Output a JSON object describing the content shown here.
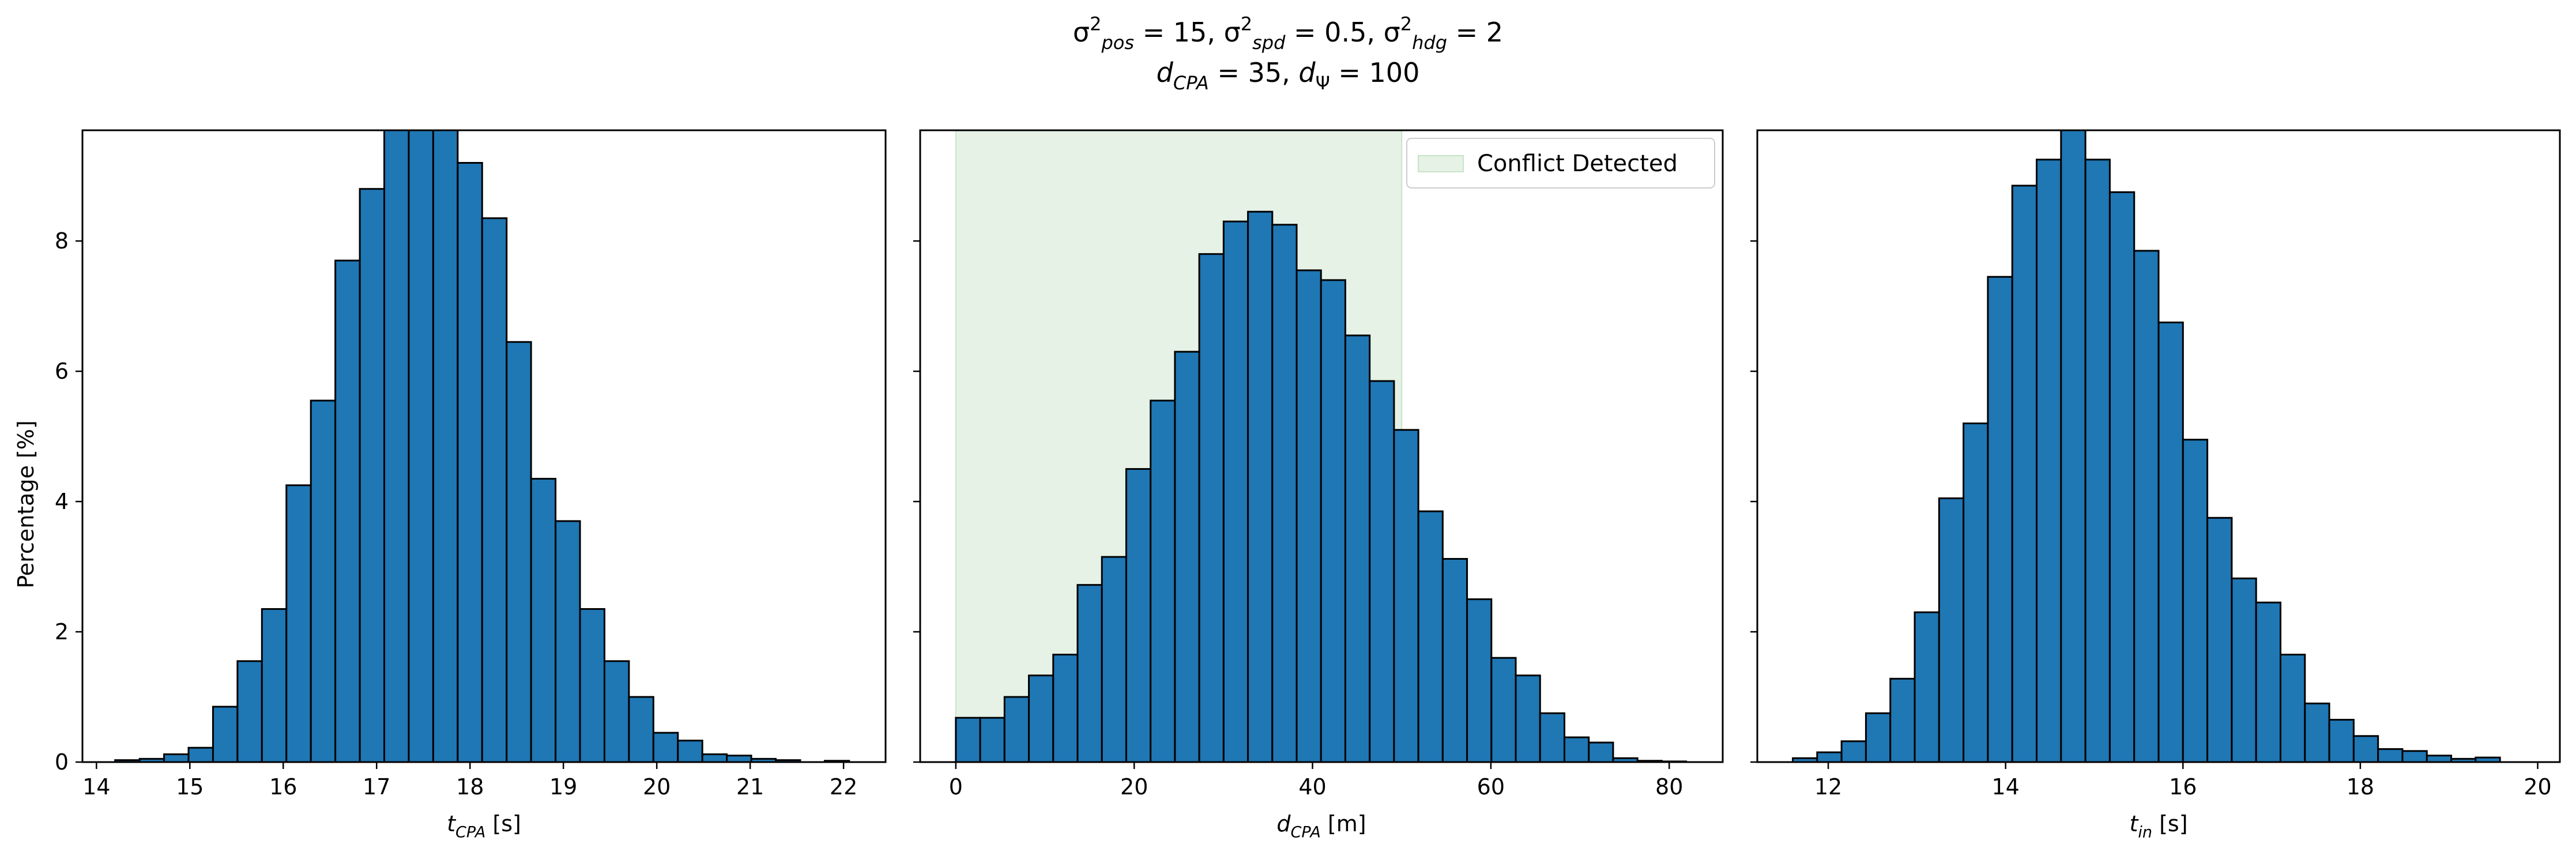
{
  "figure": {
    "suptitle": {
      "line1": [
        {
          "t": "σ"
        },
        {
          "t": "2",
          "sup": true
        },
        {
          "t": "pos",
          "sub": true,
          "it": true
        },
        {
          "t": " = 15, "
        },
        {
          "t": "σ"
        },
        {
          "t": "2",
          "sup": true
        },
        {
          "t": "spd",
          "sub": true,
          "it": true
        },
        {
          "t": " = 0.5, "
        },
        {
          "t": "σ"
        },
        {
          "t": "2",
          "sup": true
        },
        {
          "t": "hdg",
          "sub": true,
          "it": true
        },
        {
          "t": " = 2"
        }
      ],
      "line2": [
        {
          "t": "d",
          "it": true
        },
        {
          "t": "CPA",
          "sub": true,
          "it": true
        },
        {
          "t": " = 35, "
        },
        {
          "t": "d",
          "it": true
        },
        {
          "t": "Ψ",
          "sub": true
        },
        {
          "t": " = 100"
        }
      ]
    },
    "ylabel": "Percentage [%]",
    "colors": {
      "bar": "#1f77b4",
      "edge": "#000000",
      "region": "#e5f2e5",
      "region_edge": "#c8e3c8"
    }
  },
  "chart_data": [
    {
      "type": "bar",
      "name": "t_cpa_histogram",
      "xlabel": [
        {
          "t": "t",
          "it": true
        },
        {
          "t": "CPA",
          "sub": true,
          "it": true
        },
        {
          "t": " [s]"
        }
      ],
      "xlim": [
        13.85,
        22.45
      ],
      "ylim": [
        0,
        9.7
      ],
      "xticks": [
        14,
        15,
        16,
        17,
        18,
        19,
        20,
        21,
        22
      ],
      "yticks": [
        0,
        2,
        4,
        6,
        8
      ],
      "bin_start": 14.2,
      "bin_width": 0.262,
      "values": [
        0.03,
        0.05,
        0.12,
        0.22,
        0.85,
        1.55,
        2.35,
        4.25,
        5.55,
        7.7,
        8.8,
        9.9,
        10.6,
        10.2,
        9.2,
        8.35,
        6.45,
        4.35,
        3.7,
        2.35,
        1.55,
        1.0,
        0.45,
        0.33,
        0.12,
        0.1,
        0.05,
        0.03,
        0.0,
        0.02
      ]
    },
    {
      "type": "bar",
      "name": "d_cpa_histogram",
      "xlabel": [
        {
          "t": "d",
          "it": true
        },
        {
          "t": "CPA",
          "sub": true,
          "it": true
        },
        {
          "t": " [m]"
        }
      ],
      "xlim": [
        -4.0,
        86.0
      ],
      "ylim": [
        0,
        9.7
      ],
      "xticks": [
        0,
        20,
        40,
        60,
        80
      ],
      "yticks": [
        0,
        2,
        4,
        6,
        8
      ],
      "bin_start": 0.0,
      "bin_width": 2.73,
      "values": [
        0.68,
        0.68,
        1.0,
        1.33,
        1.65,
        2.72,
        3.15,
        4.5,
        5.55,
        6.3,
        7.8,
        8.3,
        8.45,
        8.25,
        7.55,
        7.4,
        6.55,
        5.85,
        5.1,
        3.85,
        3.12,
        2.5,
        1.6,
        1.33,
        0.75,
        0.38,
        0.3,
        0.06,
        0.02,
        0.01
      ],
      "region": {
        "from": 0,
        "to": 50
      },
      "legend": {
        "label": "Conflict Detected",
        "position": "upper right"
      }
    },
    {
      "type": "bar",
      "name": "t_in_histogram",
      "xlabel": [
        {
          "t": "t",
          "it": true
        },
        {
          "t": "in",
          "sub": true,
          "it": true
        },
        {
          "t": " [s]"
        }
      ],
      "xlim": [
        11.2,
        20.25
      ],
      "ylim": [
        0,
        9.7
      ],
      "xticks": [
        12,
        14,
        16,
        18,
        20
      ],
      "yticks": [
        0,
        2,
        4,
        6,
        8
      ],
      "bin_start": 11.6,
      "bin_width": 0.275,
      "values": [
        0.06,
        0.15,
        0.32,
        0.75,
        1.28,
        2.3,
        4.05,
        5.2,
        7.45,
        8.85,
        9.25,
        9.75,
        9.25,
        8.75,
        7.85,
        6.75,
        4.95,
        3.75,
        2.82,
        2.45,
        1.65,
        0.9,
        0.65,
        0.4,
        0.2,
        0.17,
        0.1,
        0.05,
        0.07,
        0.0
      ]
    }
  ]
}
